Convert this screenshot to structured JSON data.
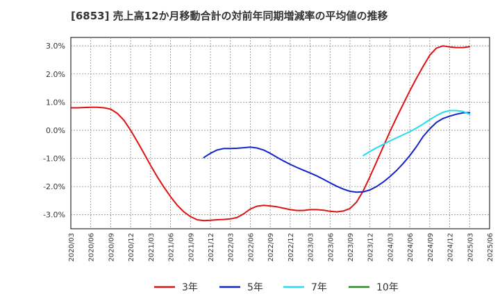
{
  "chart_data": {
    "type": "line",
    "title": "[6853]  売上高12か月移動合計の対前年同期増減率の平均値の推移",
    "xlabel": "",
    "ylabel": "",
    "ylim": [
      -3.5,
      3.3
    ],
    "yticks": [
      -3.0,
      -2.0,
      -1.0,
      0.0,
      1.0,
      2.0,
      3.0
    ],
    "ytick_labels": [
      "-3.0%",
      "-2.0%",
      "-1.0%",
      "0.0%",
      "1.0%",
      "2.0%",
      "3.0%"
    ],
    "xticks": [
      "2020/03",
      "2020/06",
      "2020/09",
      "2020/12",
      "2021/03",
      "2021/06",
      "2021/09",
      "2021/12",
      "2022/03",
      "2022/06",
      "2022/09",
      "2022/12",
      "2023/03",
      "2023/06",
      "2023/09",
      "2023/12",
      "2024/03",
      "2024/06",
      "2024/09",
      "2024/12",
      "2025/03",
      "2025/06"
    ],
    "grid": true,
    "legend_position": "bottom",
    "series": [
      {
        "name": "3年",
        "color": "#dd1111",
        "points": [
          [
            "2020/03",
            0.8
          ],
          [
            "2020/04",
            0.8
          ],
          [
            "2020/05",
            0.81
          ],
          [
            "2020/06",
            0.82
          ],
          [
            "2020/07",
            0.82
          ],
          [
            "2020/08",
            0.8
          ],
          [
            "2020/09",
            0.75
          ],
          [
            "2020/10",
            0.6
          ],
          [
            "2020/11",
            0.35
          ],
          [
            "2020/12",
            0.0
          ],
          [
            "2021/01",
            -0.4
          ],
          [
            "2021/02",
            -0.82
          ],
          [
            "2021/03",
            -1.25
          ],
          [
            "2021/04",
            -1.65
          ],
          [
            "2021/05",
            -2.02
          ],
          [
            "2021/06",
            -2.36
          ],
          [
            "2021/07",
            -2.66
          ],
          [
            "2021/08",
            -2.9
          ],
          [
            "2021/09",
            -3.07
          ],
          [
            "2021/10",
            -3.18
          ],
          [
            "2021/11",
            -3.21
          ],
          [
            "2021/12",
            -3.2
          ],
          [
            "2022/01",
            -3.18
          ],
          [
            "2022/02",
            -3.17
          ],
          [
            "2022/03",
            -3.15
          ],
          [
            "2022/04",
            -3.1
          ],
          [
            "2022/05",
            -2.97
          ],
          [
            "2022/06",
            -2.8
          ],
          [
            "2022/07",
            -2.7
          ],
          [
            "2022/08",
            -2.67
          ],
          [
            "2022/09",
            -2.69
          ],
          [
            "2022/10",
            -2.72
          ],
          [
            "2022/11",
            -2.77
          ],
          [
            "2022/12",
            -2.82
          ],
          [
            "2023/01",
            -2.85
          ],
          [
            "2023/02",
            -2.85
          ],
          [
            "2023/03",
            -2.82
          ],
          [
            "2023/04",
            -2.82
          ],
          [
            "2023/05",
            -2.84
          ],
          [
            "2023/06",
            -2.88
          ],
          [
            "2023/07",
            -2.9
          ],
          [
            "2023/08",
            -2.87
          ],
          [
            "2023/09",
            -2.78
          ],
          [
            "2023/10",
            -2.55
          ],
          [
            "2023/11",
            -2.15
          ],
          [
            "2023/12",
            -1.65
          ],
          [
            "2024/01",
            -1.12
          ],
          [
            "2024/02",
            -0.58
          ],
          [
            "2024/03",
            -0.05
          ],
          [
            "2024/04",
            0.45
          ],
          [
            "2024/05",
            0.93
          ],
          [
            "2024/06",
            1.4
          ],
          [
            "2024/07",
            1.85
          ],
          [
            "2024/08",
            2.27
          ],
          [
            "2024/09",
            2.67
          ],
          [
            "2024/10",
            2.92
          ],
          [
            "2024/11",
            3.0
          ],
          [
            "2024/12",
            2.96
          ],
          [
            "2025/01",
            2.94
          ],
          [
            "2025/02",
            2.94
          ],
          [
            "2025/03",
            2.97
          ]
        ]
      },
      {
        "name": "5年",
        "color": "#1122cc",
        "points": [
          [
            "2021/11",
            -0.97
          ],
          [
            "2021/12",
            -0.82
          ],
          [
            "2022/01",
            -0.7
          ],
          [
            "2022/02",
            -0.65
          ],
          [
            "2022/03",
            -0.65
          ],
          [
            "2022/04",
            -0.64
          ],
          [
            "2022/05",
            -0.62
          ],
          [
            "2022/06",
            -0.6
          ],
          [
            "2022/07",
            -0.63
          ],
          [
            "2022/08",
            -0.7
          ],
          [
            "2022/09",
            -0.82
          ],
          [
            "2022/10",
            -0.96
          ],
          [
            "2022/11",
            -1.09
          ],
          [
            "2022/12",
            -1.21
          ],
          [
            "2023/01",
            -1.32
          ],
          [
            "2023/02",
            -1.42
          ],
          [
            "2023/03",
            -1.52
          ],
          [
            "2023/04",
            -1.62
          ],
          [
            "2023/05",
            -1.74
          ],
          [
            "2023/06",
            -1.87
          ],
          [
            "2023/07",
            -1.99
          ],
          [
            "2023/08",
            -2.09
          ],
          [
            "2023/09",
            -2.17
          ],
          [
            "2023/10",
            -2.2
          ],
          [
            "2023/11",
            -2.19
          ],
          [
            "2023/12",
            -2.12
          ],
          [
            "2024/01",
            -2.0
          ],
          [
            "2024/02",
            -1.84
          ],
          [
            "2024/03",
            -1.65
          ],
          [
            "2024/04",
            -1.43
          ],
          [
            "2024/05",
            -1.18
          ],
          [
            "2024/06",
            -0.9
          ],
          [
            "2024/07",
            -0.58
          ],
          [
            "2024/08",
            -0.22
          ],
          [
            "2024/09",
            0.05
          ],
          [
            "2024/10",
            0.28
          ],
          [
            "2024/11",
            0.42
          ],
          [
            "2024/12",
            0.5
          ],
          [
            "2025/01",
            0.57
          ],
          [
            "2025/02",
            0.62
          ],
          [
            "2025/03",
            0.63
          ]
        ]
      },
      {
        "name": "7年",
        "color": "#22ddee",
        "points": [
          [
            "2023/11",
            -0.9
          ],
          [
            "2023/12",
            -0.75
          ],
          [
            "2024/01",
            -0.62
          ],
          [
            "2024/02",
            -0.5
          ],
          [
            "2024/03",
            -0.38
          ],
          [
            "2024/04",
            -0.27
          ],
          [
            "2024/05",
            -0.16
          ],
          [
            "2024/06",
            -0.05
          ],
          [
            "2024/07",
            0.08
          ],
          [
            "2024/08",
            0.22
          ],
          [
            "2024/09",
            0.38
          ],
          [
            "2024/10",
            0.52
          ],
          [
            "2024/11",
            0.64
          ],
          [
            "2024/12",
            0.7
          ],
          [
            "2025/01",
            0.7
          ],
          [
            "2025/02",
            0.67
          ],
          [
            "2025/03",
            0.57
          ]
        ]
      },
      {
        "name": "10年",
        "color": "#228822",
        "points": []
      }
    ]
  }
}
